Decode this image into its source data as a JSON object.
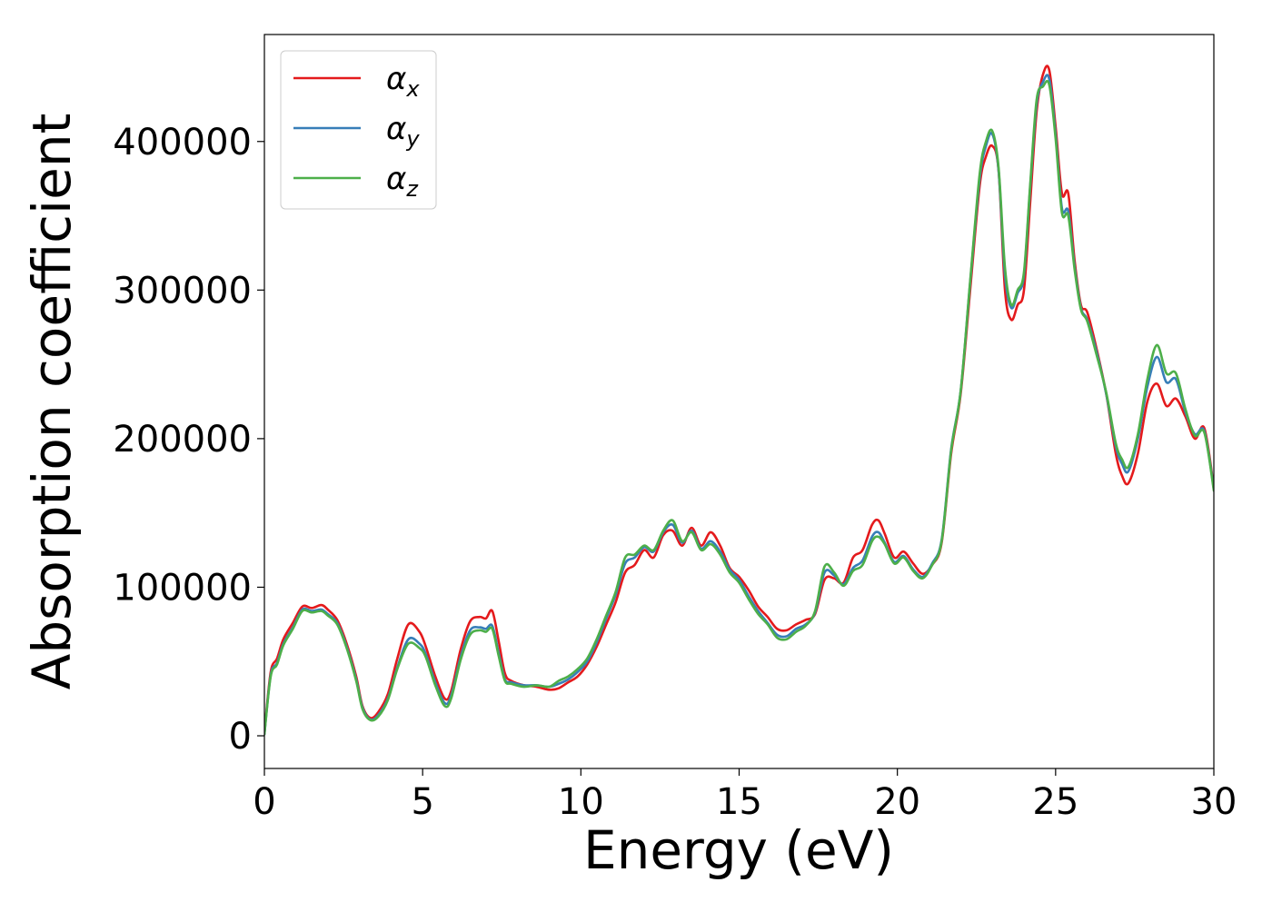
{
  "chart_data": {
    "type": "line",
    "title": "",
    "xlabel": "Energy (eV)",
    "ylabel": "Absorption coefficient",
    "xlim": [
      0,
      30
    ],
    "ylim": [
      -22000,
      472000
    ],
    "xticks": [
      0,
      5,
      10,
      15,
      20,
      25,
      30
    ],
    "yticks": [
      0,
      100000,
      200000,
      300000,
      400000
    ],
    "grid": false,
    "legend_position": "top-left",
    "series": [
      {
        "name": "αx",
        "label_base": "α",
        "label_sub": "x",
        "color": "#e41a1c",
        "x": [
          0,
          0.2,
          0.4,
          0.6,
          0.9,
          1.2,
          1.5,
          1.8,
          2.0,
          2.3,
          2.6,
          2.9,
          3.1,
          3.35,
          3.6,
          3.9,
          4.2,
          4.55,
          4.9,
          5.1,
          5.4,
          5.7,
          5.9,
          6.2,
          6.5,
          6.8,
          7.0,
          7.2,
          7.4,
          7.6,
          7.8,
          8.2,
          8.6,
          9.0,
          9.3,
          9.6,
          9.9,
          10.2,
          10.5,
          10.8,
          11.1,
          11.4,
          11.7,
          12.0,
          12.3,
          12.6,
          12.9,
          13.2,
          13.5,
          13.8,
          14.1,
          14.4,
          14.7,
          15.0,
          15.3,
          15.6,
          15.9,
          16.2,
          16.5,
          16.8,
          17.1,
          17.4,
          17.7,
          18.0,
          18.3,
          18.6,
          18.9,
          19.2,
          19.4,
          19.6,
          19.9,
          20.2,
          20.5,
          20.8,
          21.1,
          21.4,
          21.7,
          22.0,
          22.3,
          22.6,
          22.8,
          23.0,
          23.2,
          23.4,
          23.6,
          23.8,
          24.0,
          24.2,
          24.4,
          24.6,
          24.8,
          25.0,
          25.2,
          25.4,
          25.6,
          25.8,
          26.0,
          26.3,
          26.6,
          26.9,
          27.1,
          27.3,
          27.6,
          27.9,
          28.2,
          28.5,
          28.8,
          29.1,
          29.4,
          29.7,
          30.0
        ],
        "y": [
          2000,
          43000,
          52000,
          65000,
          76000,
          87000,
          86000,
          88000,
          85000,
          78000,
          62000,
          40000,
          20000,
          12000,
          16000,
          28000,
          52000,
          75000,
          70000,
          60000,
          40000,
          25000,
          30000,
          58000,
          77000,
          80000,
          79000,
          84000,
          64000,
          42000,
          37000,
          34000,
          33000,
          31000,
          32000,
          36000,
          40000,
          48000,
          60000,
          75000,
          90000,
          110000,
          115000,
          125000,
          120000,
          135000,
          138000,
          128000,
          140000,
          128000,
          137000,
          128000,
          113000,
          107000,
          98000,
          87000,
          80000,
          72000,
          71000,
          75000,
          78000,
          82000,
          105000,
          106000,
          103000,
          120000,
          125000,
          142000,
          145000,
          136000,
          120000,
          124000,
          116000,
          109000,
          115000,
          130000,
          190000,
          230000,
          300000,
          370000,
          390000,
          397000,
          380000,
          300000,
          280000,
          290000,
          300000,
          360000,
          420000,
          445000,
          448000,
          410000,
          365000,
          365000,
          320000,
          290000,
          285000,
          260000,
          230000,
          190000,
          175000,
          170000,
          190000,
          225000,
          237000,
          222000,
          227000,
          215000,
          200000,
          207000,
          167000
        ]
      },
      {
        "name": "αy",
        "label_base": "α",
        "label_sub": "y",
        "color": "#377eb8",
        "x": [
          0,
          0.2,
          0.4,
          0.6,
          0.9,
          1.2,
          1.5,
          1.8,
          2.0,
          2.3,
          2.6,
          2.9,
          3.1,
          3.35,
          3.6,
          3.9,
          4.2,
          4.55,
          4.9,
          5.1,
          5.4,
          5.7,
          5.9,
          6.2,
          6.5,
          6.8,
          7.0,
          7.2,
          7.4,
          7.6,
          7.8,
          8.2,
          8.6,
          9.0,
          9.3,
          9.6,
          9.9,
          10.2,
          10.5,
          10.8,
          11.1,
          11.4,
          11.7,
          12.0,
          12.3,
          12.6,
          12.9,
          13.2,
          13.5,
          13.8,
          14.1,
          14.4,
          14.7,
          15.0,
          15.3,
          15.6,
          15.9,
          16.2,
          16.5,
          16.8,
          17.1,
          17.4,
          17.7,
          18.0,
          18.3,
          18.6,
          18.9,
          19.2,
          19.4,
          19.6,
          19.9,
          20.2,
          20.5,
          20.8,
          21.1,
          21.4,
          21.7,
          22.0,
          22.3,
          22.6,
          22.8,
          23.0,
          23.2,
          23.4,
          23.6,
          23.8,
          24.0,
          24.2,
          24.4,
          24.6,
          24.8,
          25.0,
          25.2,
          25.4,
          25.6,
          25.8,
          26.0,
          26.3,
          26.6,
          26.9,
          27.1,
          27.3,
          27.6,
          27.9,
          28.2,
          28.5,
          28.8,
          29.1,
          29.4,
          29.7,
          30.0
        ],
        "y": [
          1000,
          41000,
          49000,
          62000,
          73000,
          85000,
          84000,
          85000,
          82000,
          76000,
          60000,
          38000,
          19000,
          11000,
          14000,
          25000,
          46000,
          65000,
          62000,
          55000,
          36000,
          22000,
          27000,
          53000,
          71000,
          73000,
          72000,
          74000,
          56000,
          38000,
          36000,
          34000,
          34000,
          33000,
          35000,
          38000,
          43000,
          50000,
          63000,
          79000,
          95000,
          116000,
          120000,
          127000,
          124000,
          137000,
          142000,
          130000,
          138000,
          126000,
          131000,
          124000,
          112000,
          105000,
          94000,
          84000,
          76000,
          68000,
          67000,
          72000,
          75000,
          83000,
          110000,
          108000,
          102000,
          113000,
          118000,
          134000,
          137000,
          130000,
          117000,
          121000,
          112000,
          107000,
          116000,
          132000,
          193000,
          232000,
          305000,
          375000,
          397000,
          405000,
          380000,
          310000,
          288000,
          298000,
          310000,
          370000,
          425000,
          440000,
          442000,
          405000,
          355000,
          353000,
          316000,
          288000,
          280000,
          258000,
          230000,
          195000,
          183000,
          178000,
          200000,
          235000,
          255000,
          238000,
          240000,
          218000,
          203000,
          205000,
          166000
        ]
      },
      {
        "name": "αz",
        "label_base": "α",
        "label_sub": "z",
        "color": "#4daf4a",
        "x": [
          0,
          0.2,
          0.4,
          0.6,
          0.9,
          1.2,
          1.5,
          1.8,
          2.0,
          2.3,
          2.6,
          2.9,
          3.1,
          3.35,
          3.6,
          3.9,
          4.2,
          4.55,
          4.9,
          5.1,
          5.4,
          5.7,
          5.9,
          6.2,
          6.5,
          6.8,
          7.0,
          7.2,
          7.4,
          7.6,
          7.8,
          8.2,
          8.6,
          9.0,
          9.3,
          9.6,
          9.9,
          10.2,
          10.5,
          10.8,
          11.1,
          11.4,
          11.7,
          12.0,
          12.3,
          12.6,
          12.9,
          13.2,
          13.5,
          13.8,
          14.1,
          14.4,
          14.7,
          15.0,
          15.3,
          15.6,
          15.9,
          16.2,
          16.5,
          16.8,
          17.1,
          17.4,
          17.7,
          18.0,
          18.3,
          18.6,
          18.9,
          19.2,
          19.4,
          19.6,
          19.9,
          20.2,
          20.5,
          20.8,
          21.1,
          21.4,
          21.7,
          22.0,
          22.3,
          22.6,
          22.8,
          23.0,
          23.2,
          23.4,
          23.6,
          23.8,
          24.0,
          24.2,
          24.4,
          24.6,
          24.8,
          25.0,
          25.2,
          25.4,
          25.6,
          25.8,
          26.0,
          26.3,
          26.6,
          26.9,
          27.1,
          27.3,
          27.6,
          27.9,
          28.2,
          28.5,
          28.8,
          29.1,
          29.4,
          29.7,
          30.0
        ],
        "y": [
          1000,
          40000,
          48000,
          61000,
          72000,
          84000,
          83000,
          84000,
          81000,
          75000,
          59000,
          37000,
          18000,
          10500,
          13000,
          24000,
          45000,
          62000,
          59000,
          53000,
          34000,
          20000,
          25000,
          51000,
          68000,
          71000,
          70000,
          72000,
          54000,
          37000,
          35000,
          33000,
          34000,
          33000,
          37000,
          40000,
          45000,
          52000,
          65000,
          81000,
          97000,
          120000,
          122000,
          128000,
          125000,
          138000,
          145000,
          131000,
          137000,
          125000,
          129000,
          122000,
          110000,
          103000,
          92000,
          82000,
          75000,
          66000,
          65000,
          70000,
          74000,
          84000,
          114000,
          110000,
          101000,
          111000,
          115000,
          131000,
          134000,
          129000,
          116000,
          120000,
          111000,
          106000,
          115000,
          131000,
          192000,
          232000,
          306000,
          378000,
          400000,
          407000,
          382000,
          315000,
          290000,
          300000,
          312000,
          372000,
          428000,
          437000,
          438000,
          402000,
          352000,
          350000,
          314000,
          287000,
          279000,
          256000,
          231000,
          197000,
          186000,
          181000,
          203000,
          240000,
          263000,
          244000,
          244000,
          220000,
          202000,
          204000,
          165000
        ]
      }
    ]
  }
}
